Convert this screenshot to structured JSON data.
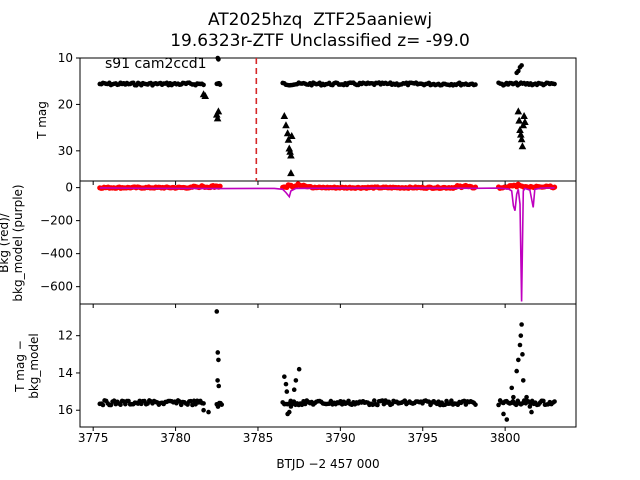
{
  "figure": {
    "title_line1": "AT2025hzq  ZTF25aaniewj",
    "title_line2": "19.6323r-ZTF Unclassified z= -99.0",
    "annotation": "s91 cam2ccd1",
    "xlabel": "BTJD −2 457 000",
    "x_ticks": [
      3775,
      3780,
      3785,
      3790,
      3795,
      3800
    ],
    "xlim": [
      3774.2,
      3804.3
    ]
  },
  "chart_data": [
    {
      "type": "scatter",
      "panel": "top",
      "ylabel": "T mag",
      "ylim": [
        10,
        36.5
      ],
      "y_inverted": true,
      "y_ticks": [
        10,
        20,
        30
      ],
      "vline": {
        "x": 3784.9,
        "color": "#d62728",
        "style": "dashed"
      },
      "series": [
        {
          "kind": "detections",
          "marker": "dot",
          "color": "#000000",
          "baseline_segments": [
            [
              3775.4,
              3781.7,
              15.6
            ],
            [
              3782.5,
              3782.7,
              15.6
            ],
            [
              3786.5,
              3798.2,
              15.6
            ],
            [
              3799.6,
              3803.0,
              15.6
            ]
          ],
          "points": [
            [
              3782.56,
              10.0
            ],
            [
              3782.6,
              10.3
            ],
            [
              3800.7,
              13.2
            ],
            [
              3800.8,
              12.8
            ],
            [
              3800.9,
              12.0
            ],
            [
              3801.0,
              11.6
            ]
          ]
        },
        {
          "kind": "upper_limits",
          "marker": "triangle",
          "color": "#000000",
          "points": [
            [
              3781.7,
              17.8
            ],
            [
              3781.8,
              18.2
            ],
            [
              3782.5,
              22.2
            ],
            [
              3782.55,
              23.0
            ],
            [
              3782.6,
              21.5
            ],
            [
              3786.6,
              22.5
            ],
            [
              3786.7,
              24.5
            ],
            [
              3786.8,
              26.2
            ],
            [
              3786.85,
              27.6
            ],
            [
              3786.9,
              29.5
            ],
            [
              3786.95,
              30.2
            ],
            [
              3787.0,
              31.0
            ],
            [
              3787.05,
              26.8
            ],
            [
              3787.0,
              34.8
            ],
            [
              3800.8,
              21.5
            ],
            [
              3800.85,
              23.5
            ],
            [
              3800.9,
              25.5
            ],
            [
              3800.95,
              26.5
            ],
            [
              3801.0,
              27.5
            ],
            [
              3801.05,
              29.0
            ],
            [
              3801.1,
              24.5
            ],
            [
              3801.15,
              22.5
            ],
            [
              3801.2,
              23.8
            ]
          ]
        }
      ]
    },
    {
      "type": "line",
      "panel": "middle",
      "ylabel_line1": "Bkg (red)/",
      "ylabel_line2": "bkg_model (purple)",
      "ylim": [
        -705,
        40
      ],
      "y_ticks": [
        0,
        -200,
        -400,
        -600
      ],
      "series": [
        {
          "kind": "bkg",
          "marker": "dot",
          "color": "#ff0000",
          "segments": [
            [
              3775.4,
              3782.7,
              0
            ],
            [
              3786.5,
              3798.2,
              0
            ],
            [
              3799.6,
              3803.0,
              0
            ]
          ],
          "bumps": [
            [
              3781.5,
              6
            ],
            [
              3782.6,
              12
            ],
            [
              3787.2,
              10
            ],
            [
              3787.8,
              15
            ],
            [
              3797.5,
              8
            ],
            [
              3800.6,
              10
            ],
            [
              3801.2,
              8
            ],
            [
              3802.3,
              6
            ]
          ]
        },
        {
          "kind": "bkg_model",
          "marker": "line",
          "color": "#bf00bf",
          "points": [
            [
              3775.4,
              -2
            ],
            [
              3778,
              -4
            ],
            [
              3781,
              -5
            ],
            [
              3782.7,
              -6
            ],
            [
              3786.0,
              -5
            ],
            [
              3786.5,
              -10
            ],
            [
              3786.7,
              -30
            ],
            [
              3786.9,
              -55
            ],
            [
              3787.0,
              -20
            ],
            [
              3787.3,
              -5
            ],
            [
              3790,
              -3
            ],
            [
              3795,
              -3
            ],
            [
              3798.2,
              -4
            ],
            [
              3799.6,
              -3
            ],
            [
              3800.2,
              -8
            ],
            [
              3800.4,
              -20
            ],
            [
              3800.5,
              -110
            ],
            [
              3800.6,
              -140
            ],
            [
              3800.7,
              -40
            ],
            [
              3800.8,
              -10
            ],
            [
              3800.9,
              -100
            ],
            [
              3801.0,
              -690
            ],
            [
              3801.1,
              -20
            ],
            [
              3801.2,
              -5
            ],
            [
              3801.5,
              -15
            ],
            [
              3801.7,
              -120
            ],
            [
              3801.8,
              -10
            ],
            [
              3802.2,
              -3
            ],
            [
              3803.0,
              -2
            ]
          ]
        }
      ]
    },
    {
      "type": "scatter",
      "panel": "bottom",
      "ylabel_line1": "T mag −",
      "ylabel_line2": "bkg_model",
      "ylim": [
        10.3,
        16.9
      ],
      "y_inverted": true,
      "y_ticks": [
        12,
        14,
        16
      ],
      "series": [
        {
          "kind": "detections",
          "marker": "dot",
          "color": "#000000",
          "baseline_segments": [
            [
              3775.4,
              3781.7,
              15.6
            ],
            [
              3782.5,
              3782.8,
              15.7
            ],
            [
              3786.5,
              3798.2,
              15.6
            ],
            [
              3799.6,
              3803.0,
              15.6
            ]
          ],
          "points": [
            [
              3782.5,
              10.7
            ],
            [
              3782.56,
              12.9
            ],
            [
              3782.6,
              13.3
            ],
            [
              3782.55,
              14.4
            ],
            [
              3782.62,
              14.7
            ],
            [
              3781.7,
              16.0
            ],
            [
              3782.0,
              16.1
            ],
            [
              3786.6,
              14.2
            ],
            [
              3786.7,
              14.6
            ],
            [
              3786.75,
              15.0
            ],
            [
              3786.8,
              16.2
            ],
            [
              3786.9,
              16.1
            ],
            [
              3787.0,
              15.8
            ],
            [
              3787.2,
              14.9
            ],
            [
              3787.3,
              14.4
            ],
            [
              3787.5,
              13.8
            ],
            [
              3799.9,
              16.2
            ],
            [
              3800.1,
              16.5
            ],
            [
              3800.4,
              14.8
            ],
            [
              3800.5,
              15.3
            ],
            [
              3800.7,
              13.9
            ],
            [
              3800.8,
              13.3
            ],
            [
              3800.9,
              12.5
            ],
            [
              3800.95,
              12.0
            ],
            [
              3801.0,
              11.4
            ],
            [
              3801.05,
              13.0
            ],
            [
              3801.1,
              14.4
            ],
            [
              3801.3,
              15.3
            ],
            [
              3801.5,
              15.8
            ],
            [
              3801.6,
              16.1
            ]
          ]
        }
      ]
    }
  ]
}
